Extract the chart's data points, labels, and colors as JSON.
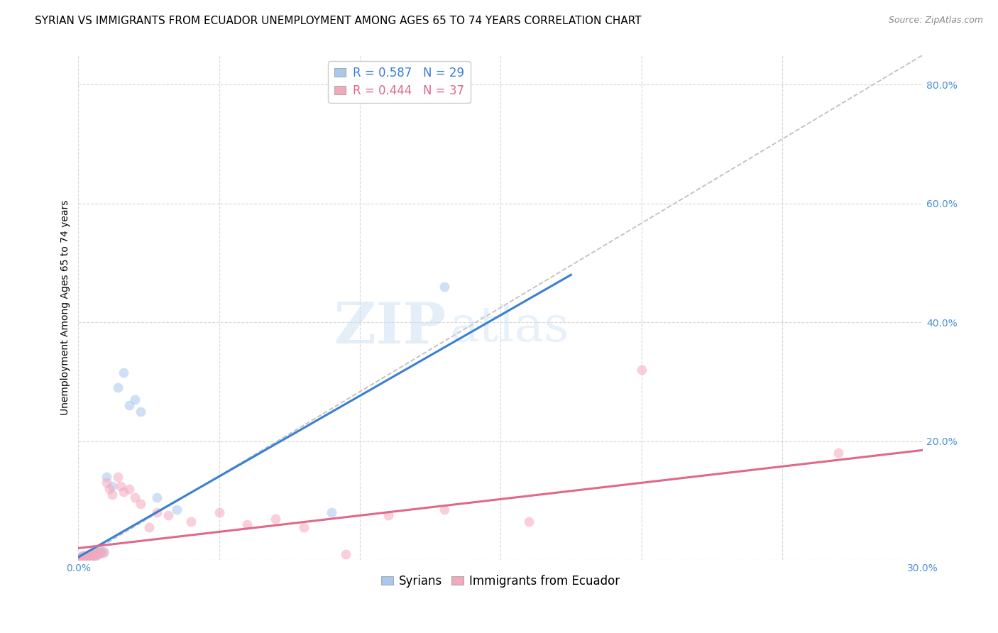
{
  "title": "SYRIAN VS IMMIGRANTS FROM ECUADOR UNEMPLOYMENT AMONG AGES 65 TO 74 YEARS CORRELATION CHART",
  "source": "Source: ZipAtlas.com",
  "ylabel": "Unemployment Among Ages 65 to 74 years",
  "xlim": [
    0.0,
    0.3
  ],
  "ylim": [
    0.0,
    0.85
  ],
  "xticks": [
    0.0,
    0.05,
    0.1,
    0.15,
    0.2,
    0.25,
    0.3
  ],
  "yticks": [
    0.0,
    0.2,
    0.4,
    0.6,
    0.8
  ],
  "legend_r1": "R = 0.587   N = 29",
  "legend_r2": "R = 0.444   N = 37",
  "syrian_color": "#a8c8f0",
  "ecuador_color": "#f4a8bc",
  "syrian_line_color": "#3a7fd4",
  "ecuador_line_color": "#e06888",
  "diagonal_color": "#c0c0c0",
  "watermark_zip": "ZIP",
  "watermark_atlas": "atlas",
  "background_color": "#ffffff",
  "grid_color": "#d8d8d8",
  "tick_color": "#4a90d9",
  "title_fontsize": 11,
  "axis_label_fontsize": 10,
  "tick_fontsize": 10,
  "legend_fontsize": 12,
  "marker_size": 100,
  "marker_alpha": 0.55,
  "syrian_x": [
    0.001,
    0.001,
    0.001,
    0.002,
    0.002,
    0.002,
    0.003,
    0.003,
    0.004,
    0.004,
    0.005,
    0.005,
    0.006,
    0.006,
    0.007,
    0.007,
    0.008,
    0.009,
    0.01,
    0.012,
    0.014,
    0.016,
    0.018,
    0.02,
    0.022,
    0.028,
    0.035,
    0.09,
    0.13
  ],
  "syrian_y": [
    0.002,
    0.004,
    0.006,
    0.003,
    0.005,
    0.008,
    0.004,
    0.007,
    0.005,
    0.01,
    0.006,
    0.012,
    0.008,
    0.015,
    0.01,
    0.018,
    0.012,
    0.015,
    0.14,
    0.125,
    0.29,
    0.315,
    0.26,
    0.27,
    0.25,
    0.105,
    0.085,
    0.08,
    0.46
  ],
  "ecuador_x": [
    0.001,
    0.001,
    0.002,
    0.002,
    0.003,
    0.003,
    0.004,
    0.004,
    0.005,
    0.006,
    0.006,
    0.007,
    0.008,
    0.009,
    0.01,
    0.011,
    0.012,
    0.014,
    0.015,
    0.016,
    0.018,
    0.02,
    0.022,
    0.025,
    0.028,
    0.032,
    0.04,
    0.05,
    0.06,
    0.07,
    0.08,
    0.095,
    0.11,
    0.13,
    0.16,
    0.2,
    0.27
  ],
  "ecuador_y": [
    0.002,
    0.005,
    0.003,
    0.007,
    0.004,
    0.008,
    0.005,
    0.01,
    0.006,
    0.008,
    0.012,
    0.01,
    0.015,
    0.012,
    0.13,
    0.12,
    0.11,
    0.14,
    0.125,
    0.115,
    0.12,
    0.105,
    0.095,
    0.055,
    0.08,
    0.075,
    0.065,
    0.08,
    0.06,
    0.07,
    0.055,
    0.01,
    0.075,
    0.085,
    0.065,
    0.32,
    0.18
  ]
}
